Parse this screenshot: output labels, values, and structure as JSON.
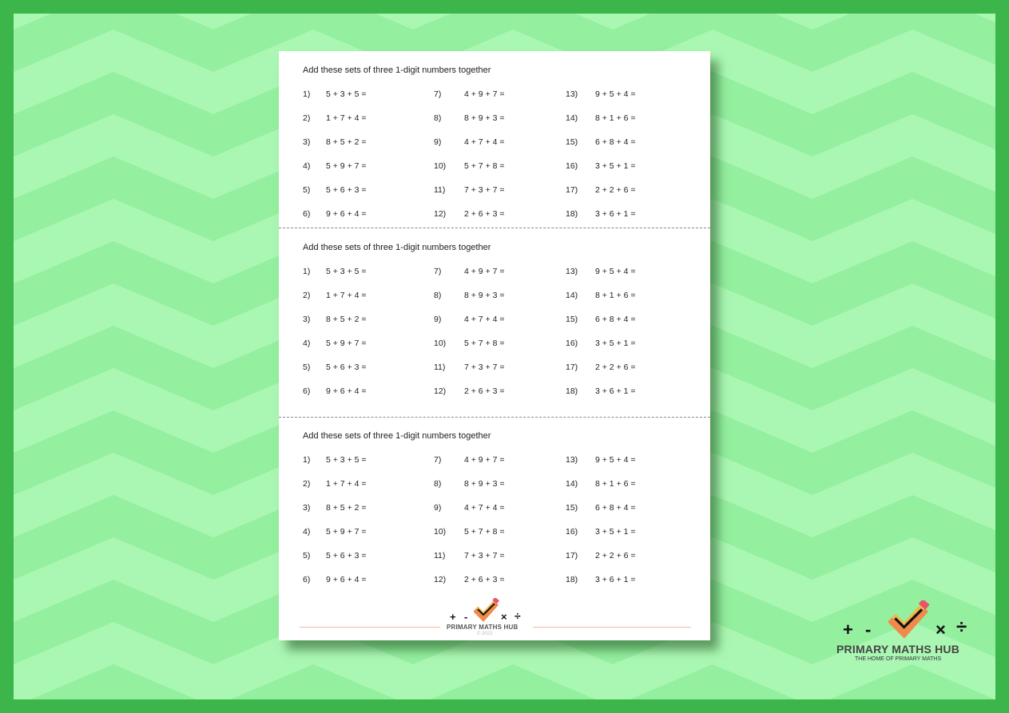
{
  "colors": {
    "border": "#3cb54a",
    "bg_light": "#aaf7b3",
    "bg_dark": "#94ef9f",
    "logo_orange": "#f08a4b",
    "logo_yellow": "#f7b34a",
    "logo_pink": "#e8546a"
  },
  "sections": [
    {
      "title": "Add these sets of three 1-digit numbers together",
      "problems": [
        {
          "n": "1)",
          "e": "5 + 3 + 5 ="
        },
        {
          "n": "2)",
          "e": "1 + 7 + 4 ="
        },
        {
          "n": "3)",
          "e": "8 + 5 + 2 ="
        },
        {
          "n": "4)",
          "e": "5 + 9 + 7 ="
        },
        {
          "n": "5)",
          "e": "5 + 6 + 3 ="
        },
        {
          "n": "6)",
          "e": "9 + 6 + 4 ="
        },
        {
          "n": "7)",
          "e": "4 + 9 + 7 ="
        },
        {
          "n": "8)",
          "e": "8 + 9 + 3 ="
        },
        {
          "n": "9)",
          "e": "4 + 7 + 4 ="
        },
        {
          "n": "10)",
          "e": "5 + 7 + 8 ="
        },
        {
          "n": "11)",
          "e": "7 + 3 + 7 ="
        },
        {
          "n": "12)",
          "e": "2 + 6 + 3 ="
        },
        {
          "n": "13)",
          "e": "9 + 5 + 4 ="
        },
        {
          "n": "14)",
          "e": "8 + 1 + 6 ="
        },
        {
          "n": "15)",
          "e": "6 + 8 + 4 ="
        },
        {
          "n": "16)",
          "e": "3 + 5 + 1 ="
        },
        {
          "n": "17)",
          "e": "2 + 2 + 6 ="
        },
        {
          "n": "18)",
          "e": "3 + 6 + 1 ="
        }
      ]
    },
    {
      "title": "Add these sets of three 1-digit numbers together",
      "problems": [
        {
          "n": "1)",
          "e": "5 + 3 + 5 ="
        },
        {
          "n": "2)",
          "e": "1 + 7 + 4 ="
        },
        {
          "n": "3)",
          "e": "8 + 5 + 2 ="
        },
        {
          "n": "4)",
          "e": "5 + 9 + 7 ="
        },
        {
          "n": "5)",
          "e": "5 + 6 + 3 ="
        },
        {
          "n": "6)",
          "e": "9 + 6 + 4 ="
        },
        {
          "n": "7)",
          "e": "4 + 9 + 7 ="
        },
        {
          "n": "8)",
          "e": "8 + 9 + 3 ="
        },
        {
          "n": "9)",
          "e": "4 + 7 + 4 ="
        },
        {
          "n": "10)",
          "e": "5 + 7 + 8 ="
        },
        {
          "n": "11)",
          "e": "7 + 3 + 7 ="
        },
        {
          "n": "12)",
          "e": "2 + 6 + 3 ="
        },
        {
          "n": "13)",
          "e": "9 + 5 + 4 ="
        },
        {
          "n": "14)",
          "e": "8 + 1 + 6 ="
        },
        {
          "n": "15)",
          "e": "6 + 8 + 4 ="
        },
        {
          "n": "16)",
          "e": "3 + 5 + 1 ="
        },
        {
          "n": "17)",
          "e": "2 + 2 + 6 ="
        },
        {
          "n": "18)",
          "e": "3 + 6 + 1 ="
        }
      ]
    },
    {
      "title": "Add these sets of three 1-digit numbers together",
      "problems": [
        {
          "n": "1)",
          "e": "5 + 3 + 5 ="
        },
        {
          "n": "2)",
          "e": "1 + 7 + 4 ="
        },
        {
          "n": "3)",
          "e": "8 + 5 + 2 ="
        },
        {
          "n": "4)",
          "e": "5 + 9 + 7 ="
        },
        {
          "n": "5)",
          "e": "5 + 6 + 3 ="
        },
        {
          "n": "6)",
          "e": "9 + 6 + 4 ="
        },
        {
          "n": "7)",
          "e": "4 + 9 + 7 ="
        },
        {
          "n": "8)",
          "e": "8 + 9 + 3 ="
        },
        {
          "n": "9)",
          "e": "4 + 7 + 4 ="
        },
        {
          "n": "10)",
          "e": "5 + 7 + 8 ="
        },
        {
          "n": "11)",
          "e": "7 + 3 + 7 ="
        },
        {
          "n": "12)",
          "e": "2 + 6 + 3 ="
        },
        {
          "n": "13)",
          "e": "9 + 5 + 4 ="
        },
        {
          "n": "14)",
          "e": "8 + 1 + 6 ="
        },
        {
          "n": "15)",
          "e": "6 + 8 + 4 ="
        },
        {
          "n": "16)",
          "e": "3 + 5 + 1 ="
        },
        {
          "n": "17)",
          "e": "2 + 2 + 6 ="
        },
        {
          "n": "18)",
          "e": "3 + 6 + 1 ="
        }
      ]
    }
  ],
  "footer": {
    "brand": "PRIMARY MATHS HUB",
    "copyright": "© 2022",
    "symbols": [
      "+",
      "-",
      "×",
      "÷"
    ]
  },
  "corner_logo": {
    "brand": "PRIMARY MATHS HUB",
    "tagline": "THE HOME OF PRIMARY MATHS",
    "symbols": [
      "+",
      "-",
      "×",
      "÷"
    ]
  }
}
